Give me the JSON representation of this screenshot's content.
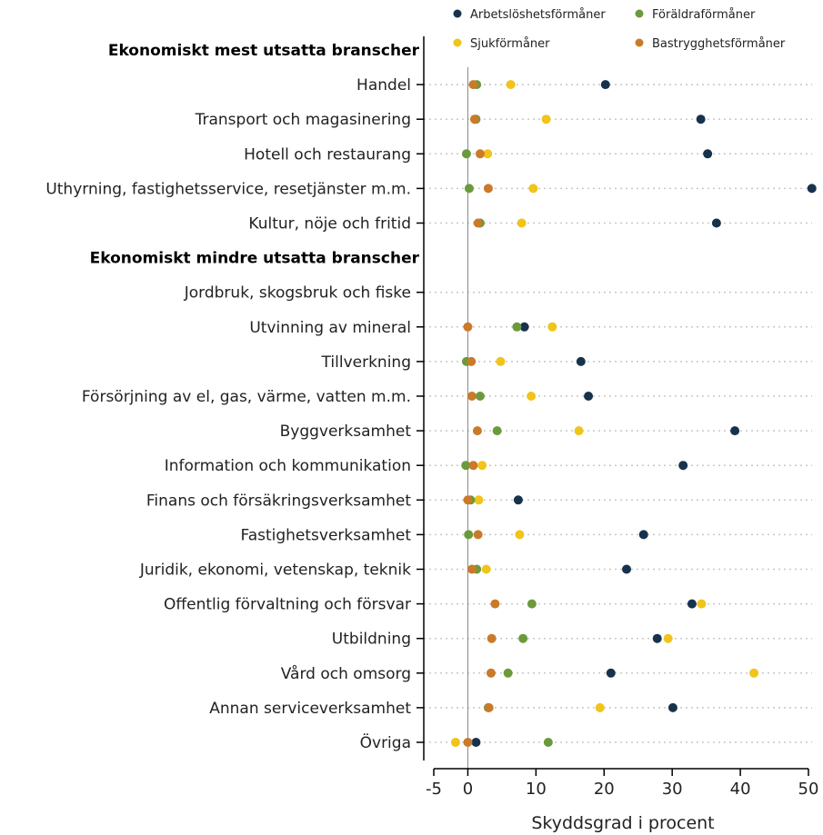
{
  "chart_data": {
    "type": "scatter",
    "xlabel": "Skyddsgrad i procent",
    "xlim": [
      -5,
      50
    ],
    "xticks": [
      -5,
      0,
      10,
      20,
      30,
      40,
      50
    ],
    "legend_position": "top-right",
    "grid": "dotted horizontal lines per category",
    "series": [
      {
        "name": "Arbetslöshetsförmåner",
        "color": "#17324d"
      },
      {
        "name": "Föräldraförmåner",
        "color": "#6a9a3c"
      },
      {
        "name": "Sjukförmåner",
        "color": "#f0c419"
      },
      {
        "name": "Bastrygghetsförmåner",
        "color": "#c97a2a"
      }
    ],
    "rows": [
      {
        "label": "Ekonomiskt mest utsatta branscher",
        "group": true
      },
      {
        "label": "Handel",
        "values": [
          20.2,
          1.3,
          6.3,
          0.8
        ]
      },
      {
        "label": "Transport och magasinering",
        "values": [
          34.2,
          1.2,
          11.5,
          1.0
        ]
      },
      {
        "label": "Hotell och restaurang",
        "values": [
          35.2,
          -0.2,
          2.9,
          1.8
        ]
      },
      {
        "label": "Uthyrning, fastighetsservice, resetjänster m.m.",
        "values": [
          50.5,
          0.2,
          9.6,
          3.0
        ]
      },
      {
        "label": "Kultur, nöje och fritid",
        "values": [
          36.5,
          1.8,
          7.9,
          1.5
        ]
      },
      {
        "label": "Ekonomiskt mindre utsatta branscher",
        "group": true
      },
      {
        "label": "Jordbruk, skogsbruk och fiske",
        "values": [
          null,
          null,
          null,
          null
        ]
      },
      {
        "label": "Utvinning av mineral",
        "values": [
          8.3,
          7.2,
          12.4,
          0.0
        ]
      },
      {
        "label": "Tillverkning",
        "values": [
          16.6,
          -0.2,
          4.8,
          0.5
        ]
      },
      {
        "label": "Försörjning av el, gas, värme, vatten m.m.",
        "values": [
          17.7,
          1.8,
          9.3,
          0.6
        ]
      },
      {
        "label": "Byggverksamhet",
        "values": [
          39.2,
          4.3,
          16.3,
          1.4
        ]
      },
      {
        "label": "Information och kommunikation",
        "values": [
          31.6,
          -0.3,
          2.1,
          0.8
        ]
      },
      {
        "label": "Finans och försäkringsverksamhet",
        "values": [
          7.4,
          0.4,
          1.6,
          0.0
        ]
      },
      {
        "label": "Fastighetsverksamhet",
        "values": [
          25.8,
          0.1,
          7.6,
          1.5
        ]
      },
      {
        "label": "Juridik, ekonomi, vetenskap, teknik",
        "values": [
          23.3,
          1.3,
          2.7,
          0.6
        ]
      },
      {
        "label": "Offentlig förvaltning och försvar",
        "values": [
          32.9,
          9.4,
          34.3,
          4.0
        ]
      },
      {
        "label": "Utbildning",
        "values": [
          27.8,
          8.1,
          29.4,
          3.5
        ]
      },
      {
        "label": "Vård och omsorg",
        "values": [
          21.0,
          5.9,
          42.0,
          3.4
        ]
      },
      {
        "label": "Annan serviceverksamhet",
        "values": [
          30.1,
          3.0,
          19.4,
          3.1
        ]
      },
      {
        "label": "Övriga",
        "values": [
          1.2,
          11.8,
          -1.8,
          0.0
        ]
      }
    ]
  }
}
